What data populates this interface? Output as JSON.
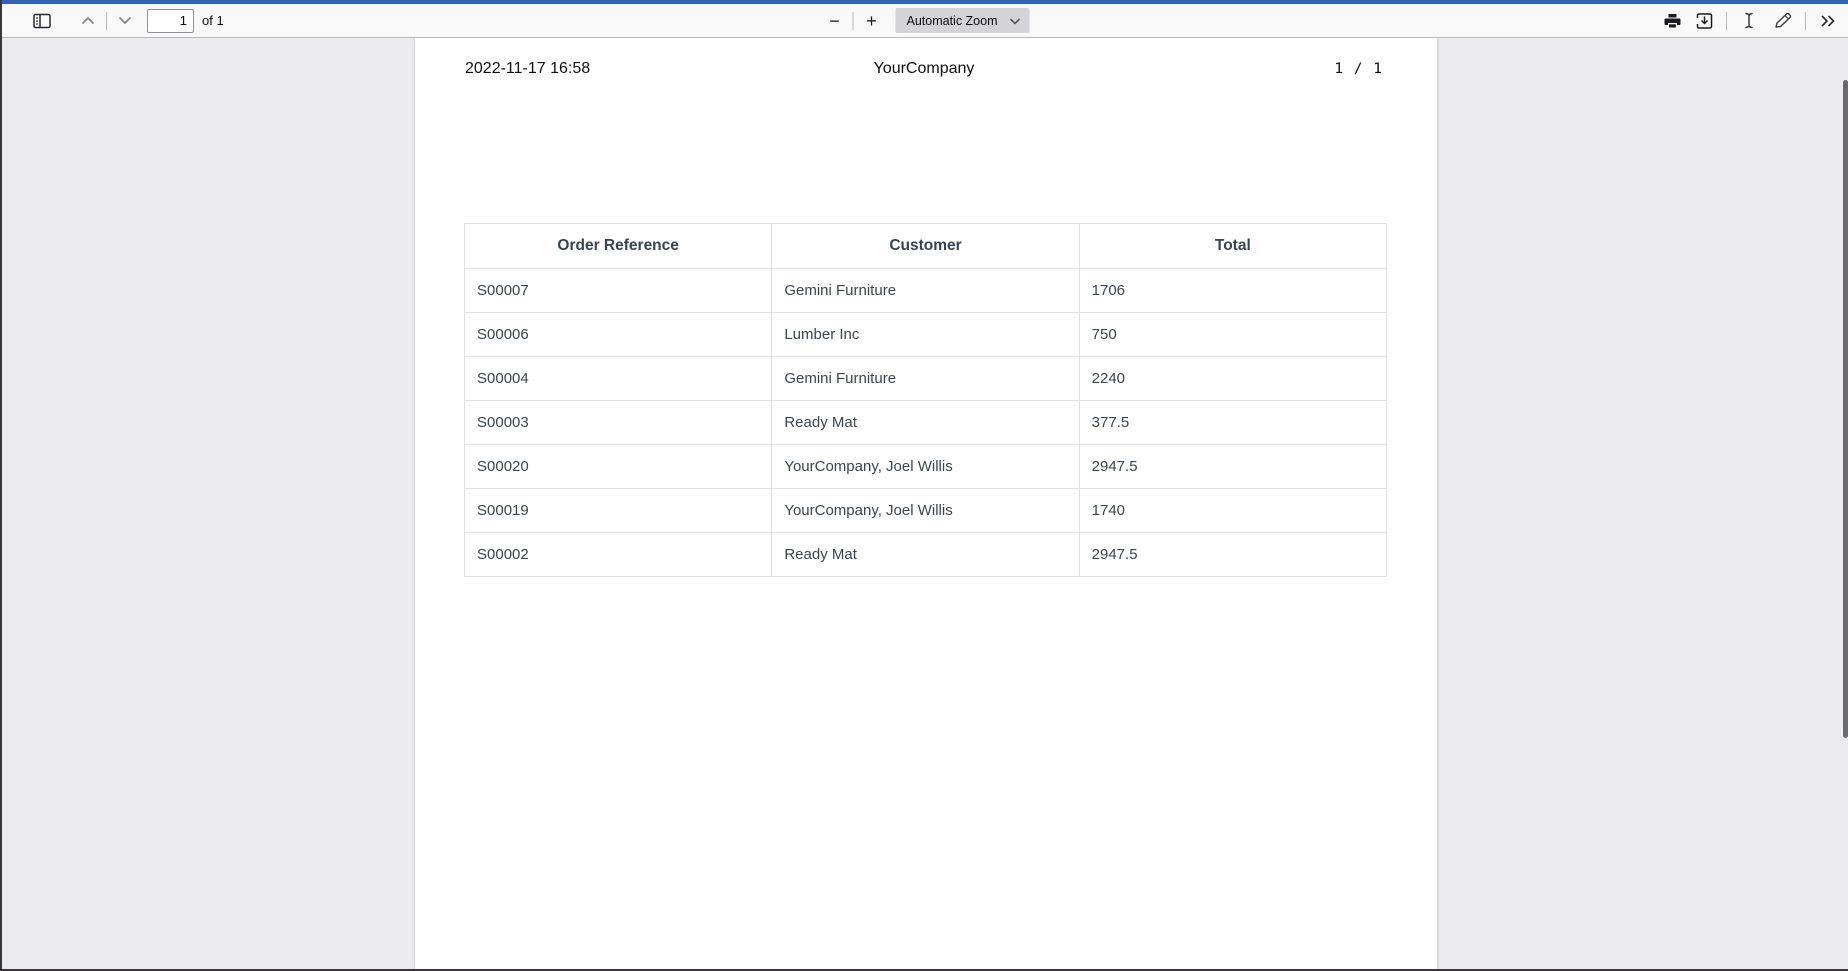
{
  "toolbar": {
    "page_input_value": "1",
    "page_count_label": "of 1",
    "zoom_out_label": "−",
    "zoom_in_label": "+",
    "zoom_select_value": "Automatic Zoom"
  },
  "icons": {
    "sidebar_toggle": "sidebar-toggle-icon",
    "previous_page": "chevron-up-icon",
    "next_page": "chevron-down-icon",
    "zoom_dropdown": "chevron-down-icon",
    "print": "printer-icon",
    "download": "download-icon",
    "text_selection": "text-cursor-icon",
    "draw": "pencil-icon",
    "more_tools": "double-chevron-right-icon"
  },
  "colors": {
    "accent": "#3462b4",
    "toolbar_bg": "#f9f9fa",
    "viewer_bg": "#ebebed",
    "page_bg": "#ffffff",
    "table_border": "#e0e1e5",
    "table_text": "#3c444c"
  },
  "document": {
    "header": {
      "date": "2022-11-17 16:58",
      "company": "YourCompany",
      "page_indicator": "1 / 1"
    },
    "table": {
      "columns": [
        "Order Reference",
        "Customer",
        "Total"
      ],
      "rows": [
        [
          "S00007",
          "Gemini Furniture",
          "1706"
        ],
        [
          "S00006",
          "Lumber Inc",
          "750"
        ],
        [
          "S00004",
          "Gemini Furniture",
          "2240"
        ],
        [
          "S00003",
          "Ready Mat",
          "377.5"
        ],
        [
          "S00020",
          "YourCompany, Joel Willis",
          "2947.5"
        ],
        [
          "S00019",
          "YourCompany, Joel Willis",
          "1740"
        ],
        [
          "S00002",
          "Ready Mat",
          "2947.5"
        ]
      ]
    }
  }
}
